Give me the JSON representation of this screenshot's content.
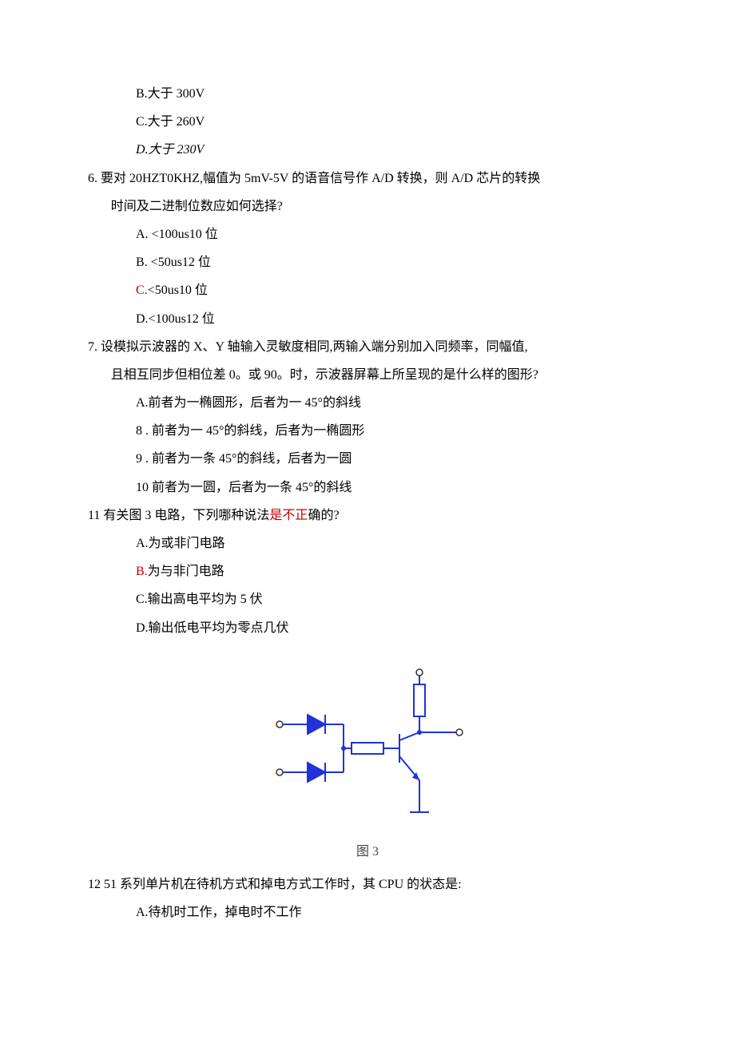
{
  "q5_opts": {
    "b": "B.大于 300V",
    "c": "C.大于 260V",
    "d": "D.大于 230V"
  },
  "q6": {
    "num": "6",
    "stem1": ". 要对 20HZT0KHZ,幅值为 5mV-5V 的语音信号作 A/D 转换，则 A/D 芯片的转换",
    "stem2": "时间及二进制位数应如何选择?",
    "a": "A. <100us10 位",
    "b": "B. <50us12 位",
    "c_prefix": "C.",
    "c_text": "<50us10 位",
    "d": "D.<100us12 位"
  },
  "q7": {
    "num": "7",
    "stem1": ". 设模拟示波器的 X、Y 轴输入灵敏度相同,两输入端分别加入同频率，同幅值,",
    "stem2": "且相互同步但相位差 0。或 90。时，示波器屏幕上所呈现的是什么样的图形?",
    "a": "A.前者为一椭圆形，后者为一 45°的斜线",
    "b": "8 . 前者为一 45°的斜线，后者为一椭圆形",
    "c": "9 . 前者为一条 45°的斜线，后者为一圆",
    "d": "10 前者为一圆，后者为一条 45°的斜线"
  },
  "q11": {
    "num": "11",
    "stem_pre": " 有关图 3 电路，下列哪种说法",
    "stem_red": "是不正",
    "stem_post": "确的?",
    "a": "A.为或非门电路",
    "b_prefix": "B.",
    "b_text": "为与非门电路",
    "c": "C.输出高电平均为 5 伏",
    "d": "D.输出低电平均为零点几伏"
  },
  "fig3": {
    "caption": "图 3",
    "stroke": "#1f33d6",
    "fill": "#1f33d6",
    "node": "#1f33d6",
    "term_stroke": "#333333",
    "bg": "#ffffff",
    "line_w": 2
  },
  "q12": {
    "num": "12",
    "stem": " 51 系列单片机在待机方式和掉电方式工作时，其 CPU 的状态是:",
    "a": "A.待机时工作，掉电时不工作"
  }
}
